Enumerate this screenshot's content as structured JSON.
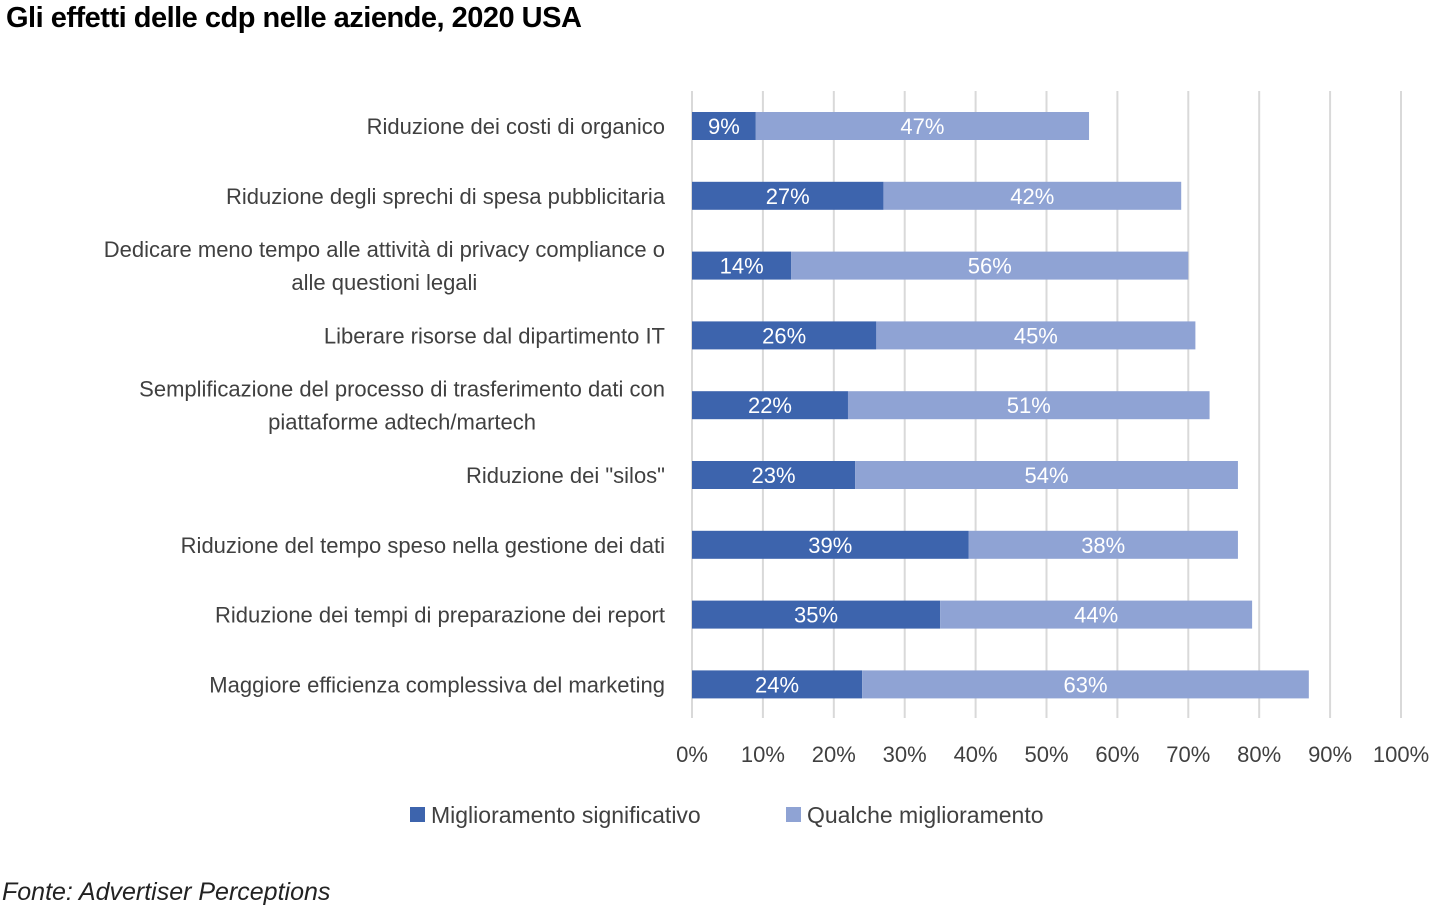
{
  "title": "Gli effetti delle cdp nelle aziende, 2020 USA",
  "source": "Fonte: Advertiser Perceptions",
  "colors": {
    "significativo": "#3d64ad",
    "qualche": "#8fa3d4",
    "grid": "#d9d9d9",
    "text": "#404040"
  },
  "chart_data": {
    "type": "bar",
    "orientation": "horizontal",
    "stacked": true,
    "title": "Gli effetti delle cdp nelle aziende, 2020 USA",
    "xlabel": "",
    "ylabel": "",
    "xlim": [
      0,
      100
    ],
    "x_ticks": [
      "0%",
      "10%",
      "20%",
      "30%",
      "40%",
      "50%",
      "60%",
      "70%",
      "80%",
      "90%",
      "100%"
    ],
    "grid": "vertical",
    "legend_position": "bottom",
    "categories": [
      [
        "Riduzione dei costi di organico"
      ],
      [
        "Riduzione degli sprechi di spesa pubblicitaria"
      ],
      [
        "Dedicare meno tempo alle attività di privacy compliance o",
        "alle questioni legali"
      ],
      [
        "Liberare risorse dal dipartimento IT"
      ],
      [
        "Semplificazione del processo di trasferimento dati con",
        "piattaforme adtech/martech"
      ],
      [
        "Riduzione dei \"silos\""
      ],
      [
        "Riduzione del tempo speso nella gestione dei dati"
      ],
      [
        "Riduzione dei tempi di preparazione dei report"
      ],
      [
        "Maggiore efficienza complessiva del marketing"
      ]
    ],
    "series": [
      {
        "name": "Miglioramento significativo",
        "color": "#3d64ad",
        "values": [
          9,
          27,
          14,
          26,
          22,
          23,
          39,
          35,
          24
        ]
      },
      {
        "name": "Qualche miglioramento",
        "color": "#8fa3d4",
        "values": [
          47,
          42,
          56,
          45,
          51,
          54,
          38,
          44,
          63
        ]
      }
    ],
    "value_suffix": "%"
  }
}
